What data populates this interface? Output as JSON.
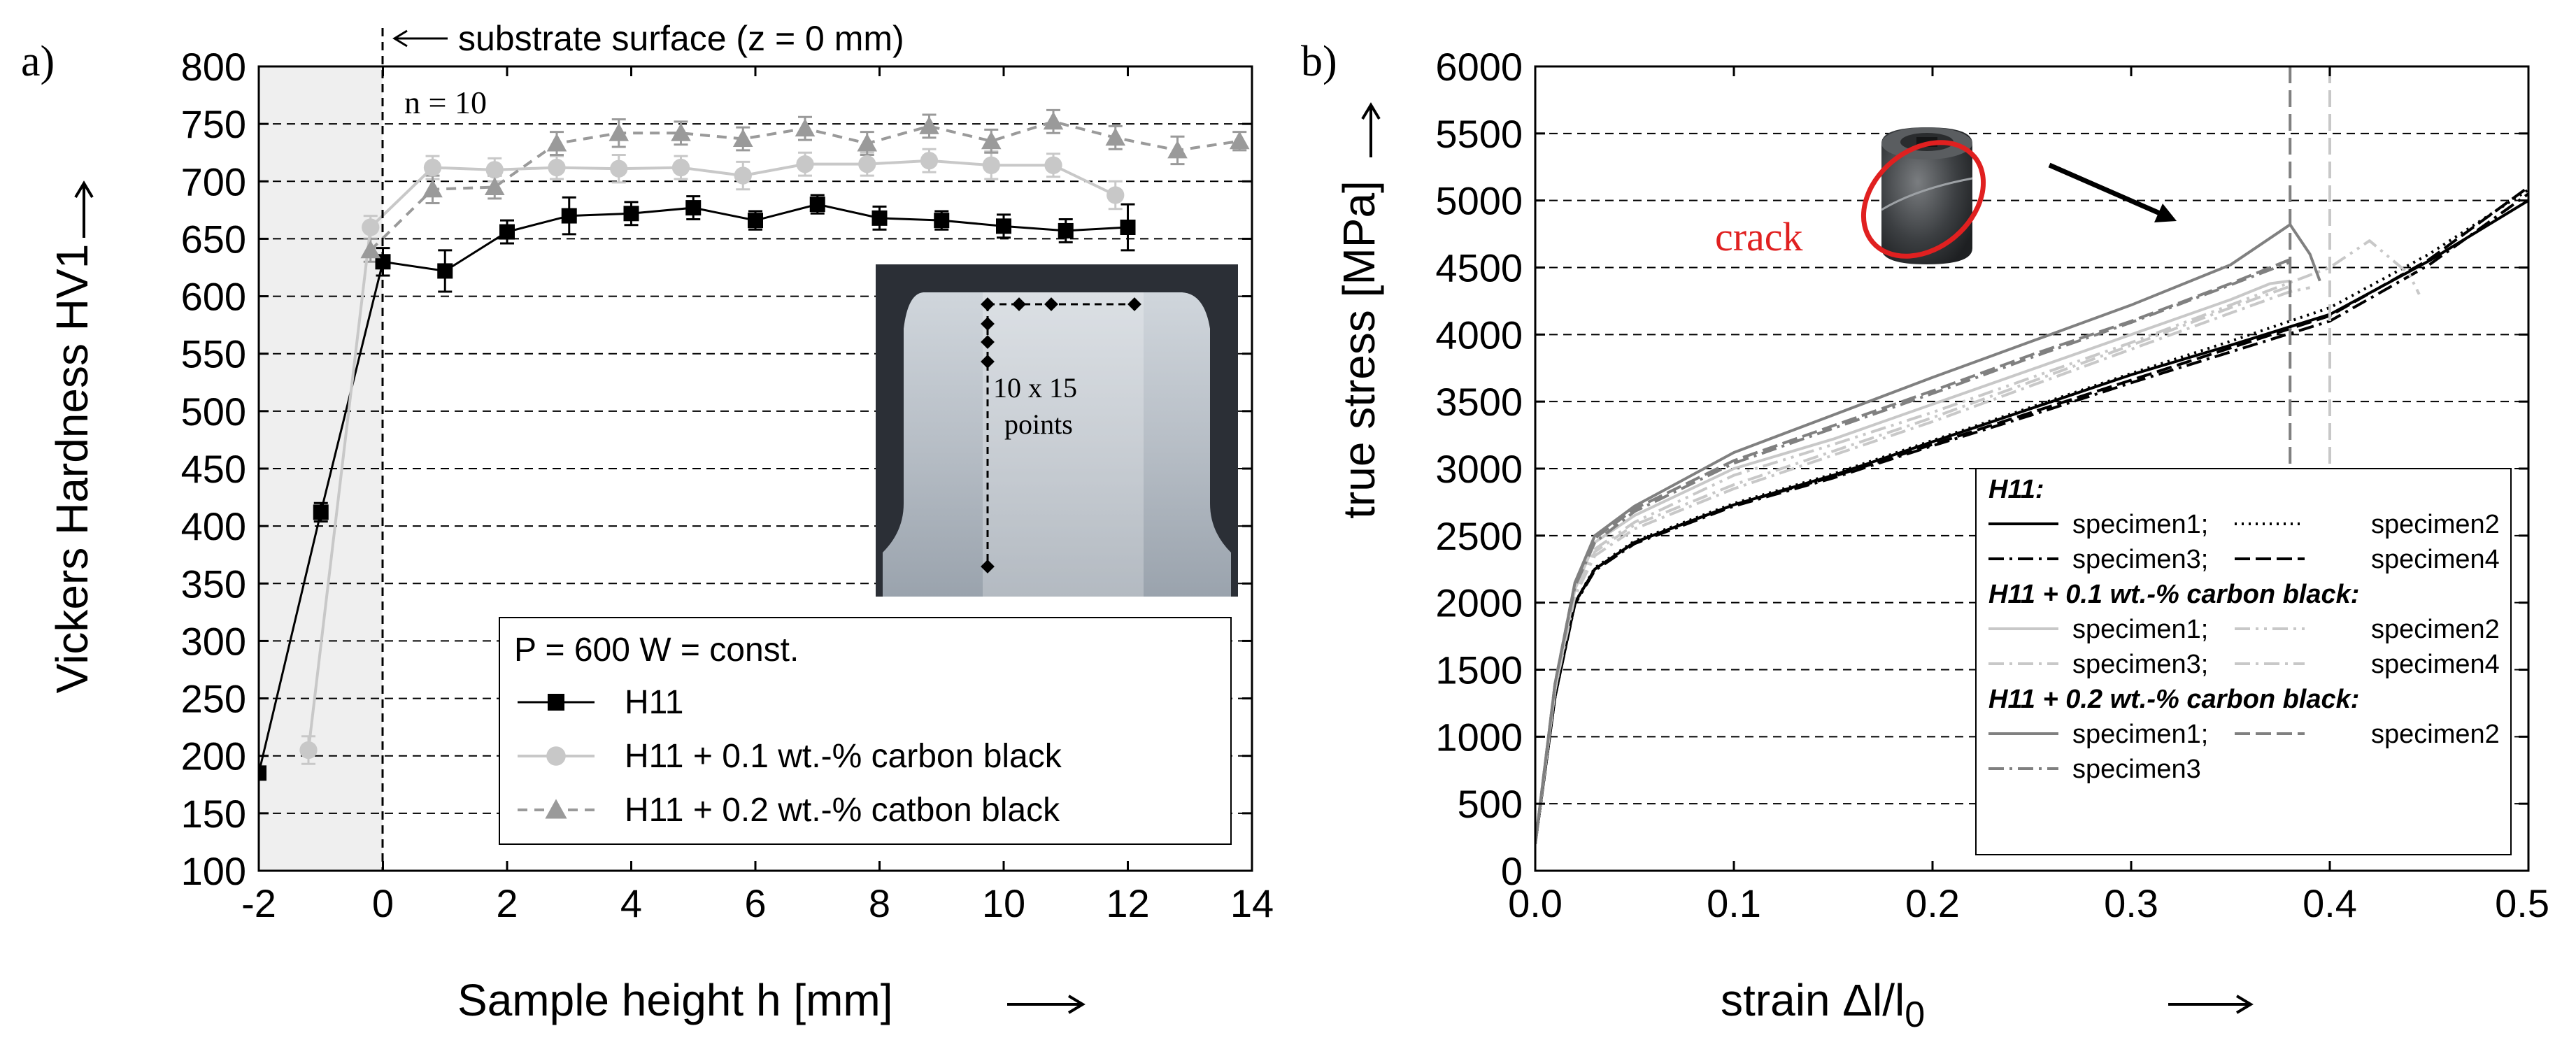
{
  "chart_data": [
    {
      "type": "line",
      "panel_label": "a)",
      "xlabel": "Sample height h [mm]",
      "ylabel": "Vickers Hardness HV1",
      "xlim": [
        -2,
        14
      ],
      "ylim": [
        100,
        800
      ],
      "xticks": [
        "-2",
        "0",
        "2",
        "4",
        "6",
        "8",
        "10",
        "12",
        "14"
      ],
      "yticks": [
        "100",
        "150",
        "200",
        "250",
        "300",
        "350",
        "400",
        "450",
        "500",
        "550",
        "600",
        "650",
        "700",
        "750",
        "800"
      ],
      "annotations": {
        "substrate": "substrate surface (z = 0 mm)",
        "n": "n = 10",
        "points": [
          "10 x 15",
          "points"
        ]
      },
      "legend_title": "P = 600 W = const.",
      "series": [
        {
          "name": "H11",
          "color": "#000000",
          "marker": "square",
          "x": [
            -2,
            -1,
            0,
            1,
            2,
            3,
            4,
            5,
            6,
            7,
            8,
            9,
            10,
            11,
            12
          ],
          "y": [
            185,
            412,
            630,
            622,
            656,
            670,
            672,
            677,
            666,
            680,
            668,
            666,
            661,
            657,
            660
          ],
          "err": [
            5,
            8,
            12,
            18,
            10,
            16,
            10,
            10,
            8,
            8,
            10,
            8,
            10,
            10,
            20
          ]
        },
        {
          "name": "H11 + 0.1 wt.-% carbon black",
          "color": "#c8c8c8",
          "marker": "circle",
          "x": [
            -1.2,
            -0.2,
            0.8,
            1.8,
            2.8,
            3.8,
            4.8,
            5.8,
            6.8,
            7.8,
            8.8,
            9.8,
            10.8,
            11.8
          ],
          "y": [
            205,
            660,
            712,
            710,
            712,
            711,
            712,
            705,
            715,
            715,
            718,
            714,
            714,
            688
          ],
          "err": [
            12,
            10,
            10,
            10,
            10,
            12,
            10,
            12,
            10,
            10,
            10,
            12,
            10,
            12
          ]
        },
        {
          "name": "H11 + 0.2 wt.-%  catbon black",
          "color": "#9a9a9a",
          "marker": "triangle",
          "x": [
            -0.2,
            0.8,
            1.8,
            2.8,
            3.8,
            4.8,
            5.8,
            6.8,
            7.8,
            8.8,
            9.8,
            10.8,
            11.8,
            12.8,
            13.8
          ],
          "y": [
            640,
            693,
            695,
            733,
            742,
            742,
            737,
            746,
            733,
            748,
            735,
            752,
            738,
            727,
            735
          ],
          "err": [
            10,
            12,
            10,
            10,
            12,
            10,
            10,
            10,
            10,
            10,
            10,
            10,
            10,
            12,
            8
          ]
        }
      ],
      "inset": {
        "description_text": "10 x 15 points"
      }
    },
    {
      "type": "line",
      "panel_label": "b)",
      "xlabel": "strain Δl/l",
      "xlabel_sub": "0",
      "ylabel": "true stress [MPa]",
      "xlim": [
        0,
        0.5
      ],
      "ylim": [
        0,
        6000
      ],
      "xticks": [
        "0.0",
        "0.1",
        "0.2",
        "0.3",
        "0.4",
        "0.5"
      ],
      "yticks": [
        "0",
        "500",
        "1000",
        "1500",
        "2000",
        "2500",
        "3000",
        "3500",
        "4000",
        "4500",
        "5000",
        "5500",
        "6000"
      ],
      "annotation_crack": "crack",
      "vlines": [
        0.38,
        0.4
      ],
      "legend": {
        "groups": [
          {
            "title": "H11:",
            "entries": [
              "specimen1;",
              "specimen2",
              "specimen3;",
              "specimen4"
            ]
          },
          {
            "title": "H11 + 0.1 wt.-% carbon black:",
            "entries": [
              "specimen1;",
              "specimen2",
              "specimen3;",
              "specimen4"
            ]
          },
          {
            "title": "H11 + 0.2 wt.-% carbon black:",
            "entries": [
              "specimen1;",
              "specimen2",
              "specimen3"
            ]
          }
        ]
      },
      "series": [
        {
          "name": "H11 specimen1",
          "color": "#000000",
          "dash": "",
          "x": [
            0,
            0.01,
            0.02,
            0.03,
            0.05,
            0.1,
            0.15,
            0.2,
            0.25,
            0.3,
            0.35,
            0.4,
            0.45,
            0.5
          ],
          "y": [
            200,
            1300,
            2000,
            2250,
            2450,
            2730,
            2950,
            3200,
            3450,
            3700,
            3920,
            4150,
            4550,
            5000
          ]
        },
        {
          "name": "H11 specimen2",
          "color": "#000000",
          "dash": "3,7",
          "x": [
            0,
            0.01,
            0.02,
            0.03,
            0.05,
            0.1,
            0.15,
            0.2,
            0.25,
            0.3,
            0.35,
            0.4,
            0.45,
            0.5
          ],
          "y": [
            200,
            1300,
            2000,
            2260,
            2460,
            2740,
            2960,
            3210,
            3460,
            3710,
            3950,
            4200,
            4600,
            5080
          ]
        },
        {
          "name": "H11 specimen3",
          "color": "#000000",
          "dash": "22,8,4,8",
          "x": [
            0,
            0.01,
            0.02,
            0.03,
            0.05,
            0.1,
            0.15,
            0.2,
            0.25,
            0.3,
            0.35,
            0.4,
            0.45,
            0.5
          ],
          "y": [
            200,
            1300,
            1990,
            2240,
            2440,
            2720,
            2930,
            3170,
            3400,
            3640,
            3870,
            4100,
            4520,
            5050
          ]
        },
        {
          "name": "H11 specimen4",
          "color": "#000000",
          "dash": "22,8",
          "x": [
            0,
            0.01,
            0.02,
            0.03,
            0.05,
            0.1,
            0.15,
            0.2,
            0.25,
            0.3,
            0.35,
            0.4,
            0.45,
            0.5
          ],
          "y": [
            200,
            1300,
            2000,
            2250,
            2450,
            2730,
            2940,
            3180,
            3420,
            3660,
            3900,
            4140,
            4560,
            5100
          ]
        },
        {
          "name": "H11 + 0.1 wt.-% carbon black specimen1",
          "color": "#c8c8c8",
          "dash": "",
          "x": [
            0,
            0.01,
            0.02,
            0.03,
            0.05,
            0.1,
            0.15,
            0.2,
            0.25,
            0.3,
            0.35,
            0.37,
            0.38
          ],
          "y": [
            200,
            1350,
            2100,
            2450,
            2650,
            3000,
            3220,
            3480,
            3740,
            4000,
            4260,
            4380,
            4400
          ]
        },
        {
          "name": "H11 + 0.1 wt.-% carbon black specimen2",
          "color": "#c8c8c8",
          "dash": "22,8,4,8,4,8",
          "x": [
            0,
            0.01,
            0.02,
            0.03,
            0.05,
            0.1,
            0.15,
            0.2,
            0.25,
            0.3,
            0.35,
            0.4,
            0.42,
            0.44,
            0.445
          ],
          "y": [
            200,
            1350,
            2100,
            2400,
            2600,
            2950,
            3180,
            3420,
            3680,
            3940,
            4220,
            4500,
            4700,
            4450,
            4300
          ]
        },
        {
          "name": "H11 + 0.1 wt.-% carbon black specimen3",
          "color": "#c8c8c8",
          "dash": "22,8,4,8",
          "x": [
            0,
            0.01,
            0.02,
            0.03,
            0.05,
            0.1,
            0.15,
            0.2,
            0.25,
            0.3,
            0.35,
            0.38,
            0.39
          ],
          "y": [
            200,
            1350,
            2050,
            2350,
            2550,
            2850,
            3100,
            3350,
            3620,
            3890,
            4160,
            4320,
            4350
          ]
        },
        {
          "name": "H11 + 0.1 wt.-% carbon black specimen4",
          "color": "#c8c8c8",
          "dash": "22,8,4,8",
          "x": [
            0,
            0.01,
            0.02,
            0.03,
            0.05,
            0.1,
            0.15,
            0.2,
            0.25,
            0.3,
            0.35,
            0.38
          ],
          "y": [
            200,
            1350,
            2080,
            2380,
            2580,
            2880,
            3130,
            3380,
            3650,
            3920,
            4200,
            4360
          ]
        },
        {
          "name": "H11 + 0.2 wt.-% carbon black specimen1",
          "color": "#808080",
          "dash": "",
          "x": [
            0,
            0.01,
            0.02,
            0.03,
            0.05,
            0.1,
            0.15,
            0.2,
            0.25,
            0.3,
            0.35,
            0.38,
            0.39,
            0.395
          ],
          "y": [
            200,
            1400,
            2150,
            2500,
            2720,
            3120,
            3400,
            3680,
            3950,
            4220,
            4520,
            4820,
            4600,
            4400
          ]
        },
        {
          "name": "H11 + 0.2 wt.-% carbon black specimen2",
          "color": "#808080",
          "dash": "22,8",
          "x": [
            0,
            0.01,
            0.02,
            0.03,
            0.05,
            0.1,
            0.15,
            0.2,
            0.25,
            0.3,
            0.35,
            0.38
          ],
          "y": [
            200,
            1400,
            2150,
            2480,
            2700,
            3060,
            3320,
            3580,
            3850,
            4100,
            4380,
            4560
          ]
        },
        {
          "name": "H11 + 0.2 wt.-% carbon black specimen3",
          "color": "#808080",
          "dash": "22,8,4,8",
          "x": [
            0,
            0.01,
            0.02,
            0.03,
            0.05,
            0.1,
            0.15,
            0.2,
            0.25,
            0.3,
            0.35,
            0.38
          ],
          "y": [
            200,
            1400,
            2120,
            2450,
            2680,
            3040,
            3300,
            3560,
            3830,
            4090,
            4370,
            4540
          ]
        }
      ]
    }
  ]
}
